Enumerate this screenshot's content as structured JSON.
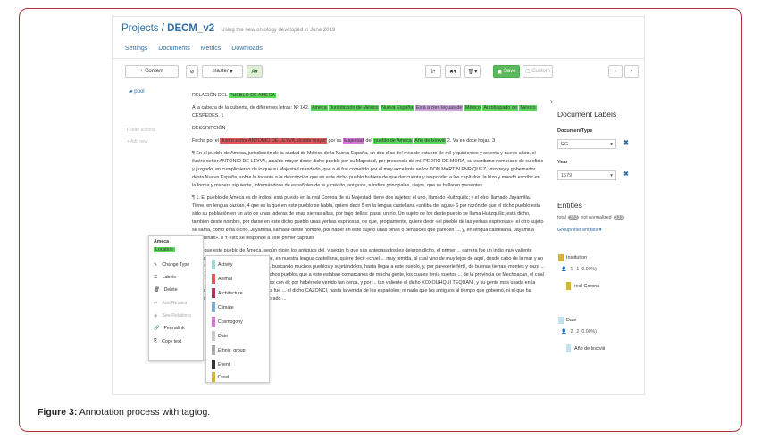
{
  "header": {
    "project_link": "Projects",
    "separator": "/",
    "project_name": "DECM_v2",
    "description": "Using the new ontology developed in June 2019"
  },
  "nav": [
    "Settings",
    "Documents",
    "Metrics",
    "Downloads"
  ],
  "toolbar": {
    "add_content": "+ Content",
    "branch": "master",
    "save": "Save",
    "custom": "Custom"
  },
  "sidebar": {
    "pool": "pool",
    "folder_actions": "Folder actions",
    "add_new": "+ Add new"
  },
  "doc": {
    "title_pre": "RELACIÓN DEL",
    "title_hl": "PUEBLO DE AMECA",
    "head1": "A la cabeza de la cubierta, de diferentes letras: Nº 142.",
    "head1_a": "Ameca",
    "head1_b": "Jurisdicción de México",
    "head1_c": "Nueva España",
    "head1_d": "Está a cien leguas de",
    "head1_e": "México",
    "head1_f": "Arzobispado de",
    "head1_g": "México",
    "head1_h": "CÉSPEDES. 1",
    "section": "DESCRIPCIÓN",
    "p1_a": "Fecha por el",
    "p1_b": "ilustre señor ANTONIO DE LEYVA,alcalde mayor",
    "p1_c": "por su",
    "p1_d": "Majestad",
    "p1_e": "del",
    "p1_f": "pueblo de Ameca",
    "p1_g": "Año de lxxxviii",
    "p1_h": "2. Va en doce hojas. 3",
    "p2": "¶ En el pueblo de Ameca, jurisdicción de la ciudad de México de la Nueva España, en dos días del mes de octubre de mil y quinientos y setenta y nueve años, el ilustre señor ANTONIO DE LEYVA, alcalde mayor deste dicho pueblo por su Majestad, por presencia de mí, PEDRO DE MORA, su escribano nombrado de su oficio y juzgado, en cumplimiento de lo que su Majestad mandado, que a él fue cometido por el muy excelente señor DON MARTÍN ENRIQUEZ, visorrey y gobernador desta Nueva España, sobre lo tocante a la descripción que en este dicho pueblo hubiere de que dar cuenta y responder a los capítulos, la hizo y mandó escribir en la forma y manera siguiente, informándose de españoles de fe y crédito, antiguos, e indios principales, viejos, que se hallaron presentes.",
    "p3": "¶ 1. El pueblo de Ameca es de indios, está puesto en la real Corona de su Majestad, tiene dos sujetos: el uno, llamado Huitzquilic; y el otro, llamado Jayamitla. Tiene, en lengua cazcan, 4 que es la que en este pueblo se habla, quiere decir 5 en la lengua castellana «antiba del agua» 6 por razón de que el dicho pueblo está sido su población en un alto de unas laderas de unas sierras altas, por bajo dellas: pasar un río. Un sujeto de los deste pueblo se llama Huitzquilic, está dicho, tambien deste nombre, por darse en este dicho pueblo unas yerbas espinosas, de que, propiamente, quiere decir «el pueblo de las yerbas espinosas»; el otro sujeto se llama, como está dicho, Jayamitla, llámase deste nombre, por haber en este sujeto unas piñas o peñascos que parecen ..., y, en lengua castellana, Jayamitla «colmenas». 8 Y esto se responde a este primer capítulo.",
    "p4": "... de que este pueblo de Ameca, según dicen los antiguos del, y según lo que sus antepasados les dejaron dicho, el primer ... carrera fue un indio muy valiente llamado XOXOUHQUI TEQUANI, que, en nuestra lengua castellana, quiere decir «cruel ... muy temida, al cual vino de muy lejos de aquí, desde cabo de la mar y no saben decir de dónde. El cual vino ... buscando muchos pueblos y sujetándolos, hasta llegar a este pueblo, y, por parecerle fértil, de buenas tierras, montes y caza ... para, donde agora conquistar otro dichos pueblos que a éste estaban comarcanos de mucha gente, los cuales tenía sujetos ... de la provincia de Mechoacán, el cual dicho CAZONCI, tuvo grandes guerras con él; por habérsele venido tan cerca, y por ... tan valiente el dicho XOXOUHQUI TEQUANI, y su gente mas usada en la guerra nunca pudo sujetarle, ni jamás fue ... el dicho CAZONCI, hasta la venida de los españoles; ni nada que los antiguos al tiempo que gobernó, ni el que ha muchos tiempos que ... fueren, a cobrado ..."
  },
  "context_menu": {
    "entity": "Ameca",
    "type": "Location",
    "items": [
      "Change Type",
      "Labels",
      "Delete",
      "Add Relation",
      "See Relations",
      "Permalink",
      "Copy text"
    ]
  },
  "type_menu": [
    {
      "label": "Activity",
      "color": "#9ed9d9"
    },
    {
      "label": "Animal",
      "color": "#e0555a"
    },
    {
      "label": "Architecture",
      "color": "#b03060"
    },
    {
      "label": "Climate",
      "color": "#7eb1d8"
    },
    {
      "label": "Cosmogony",
      "color": "#d678d6"
    },
    {
      "label": "Date",
      "color": "#cccccc"
    },
    {
      "label": "Ethnic_group",
      "color": "#aaaaaa"
    },
    {
      "label": "Event",
      "color": "#333333"
    },
    {
      "label": "Food",
      "color": "#d4b33a"
    }
  ],
  "right": {
    "doc_labels": "Document Labels",
    "doctype_label": "DocumentType",
    "doctype_value": "RG",
    "year_label": "Year",
    "year_value": "1579",
    "entities": "Entities",
    "total": "total",
    "total_count": "333",
    "not_normalized": "not normalized",
    "nn_count": "333",
    "group_filter": "Group/filter entities",
    "inst_title": "Institution",
    "inst_count": "1",
    "inst_pct": "1 (0.00%)",
    "inst_item": "real Corona",
    "date_title": "Date",
    "date_count": "2",
    "date_pct": "2 (0.00%)",
    "date_item": "Año de lxxxviii"
  },
  "caption": {
    "bold": "Figure 3:",
    "text": "Annotation process with tagtog."
  }
}
